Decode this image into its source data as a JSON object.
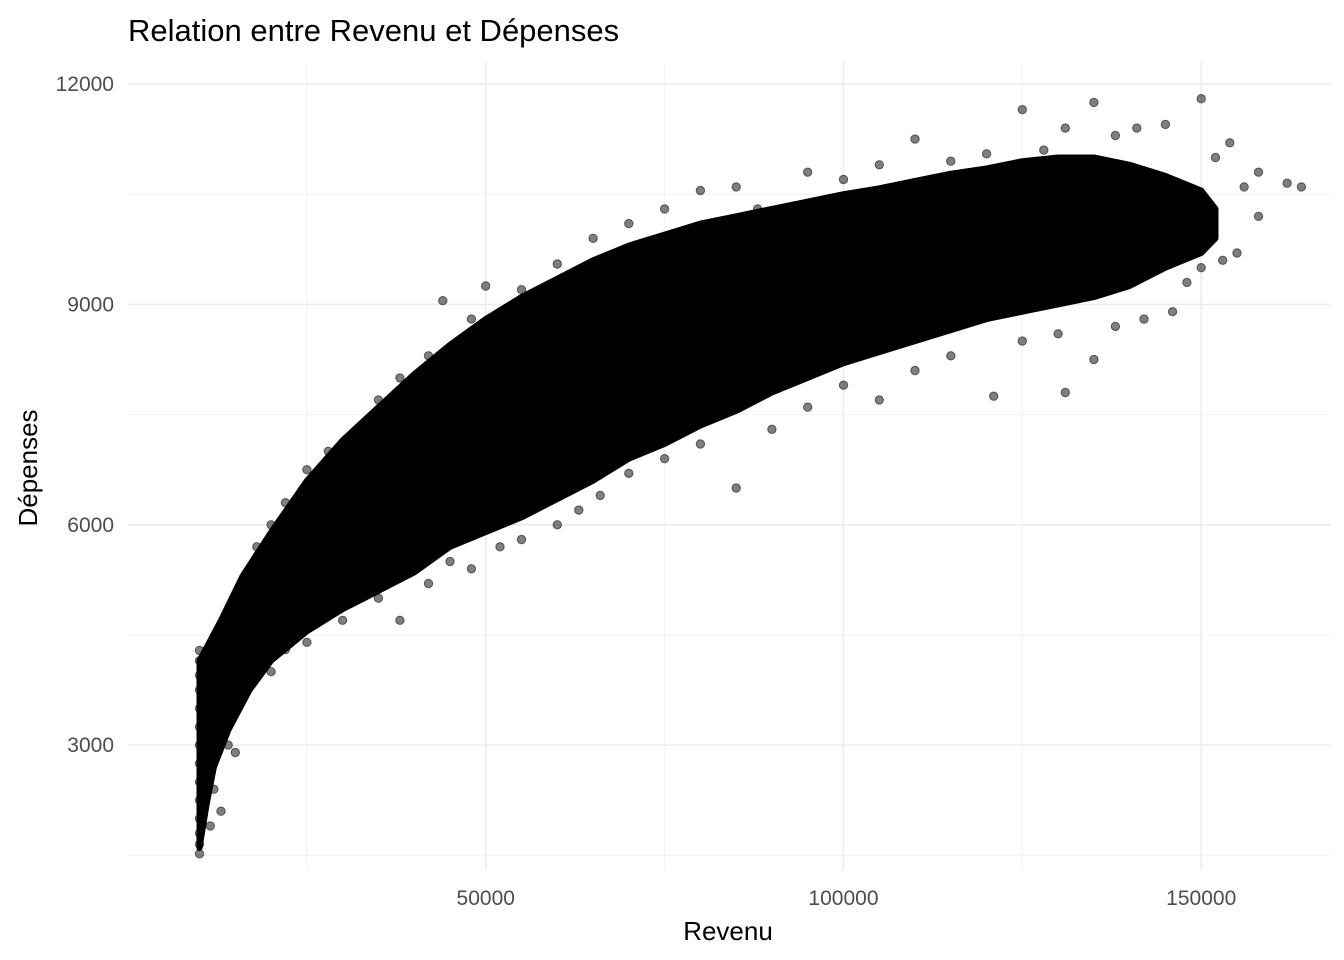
{
  "chart_data": {
    "type": "scatter",
    "title": "Relation entre Revenu et Dépenses",
    "xlabel": "Revenu",
    "ylabel": "Dépenses",
    "xlim": [
      0,
      168000
    ],
    "ylim": [
      1300,
      12300
    ],
    "x_ticks": [
      50000,
      100000,
      150000
    ],
    "y_ticks": [
      3000,
      6000,
      9000,
      12000
    ],
    "grid": true,
    "point_color": "#000000",
    "point_alpha": 0.5,
    "points": [
      [
        10000,
        1520
      ],
      [
        10000,
        1650
      ],
      [
        10000,
        1800
      ],
      [
        10000,
        2000
      ],
      [
        10000,
        2250
      ],
      [
        10000,
        2500
      ],
      [
        10000,
        2750
      ],
      [
        10000,
        3000
      ],
      [
        10000,
        3250
      ],
      [
        10000,
        3500
      ],
      [
        10000,
        3750
      ],
      [
        10000,
        3950
      ],
      [
        10000,
        4150
      ],
      [
        10000,
        4290
      ],
      [
        11500,
        1900
      ],
      [
        12000,
        2400
      ],
      [
        13000,
        2100
      ],
      [
        14000,
        3000
      ],
      [
        15000,
        2900
      ],
      [
        13000,
        4500
      ],
      [
        15000,
        4800
      ],
      [
        17000,
        5200
      ],
      [
        18000,
        5700
      ],
      [
        20000,
        6000
      ],
      [
        22000,
        6300
      ],
      [
        25000,
        6750
      ],
      [
        28000,
        7000
      ],
      [
        32000,
        7300
      ],
      [
        35000,
        7700
      ],
      [
        38000,
        8000
      ],
      [
        42000,
        8300
      ],
      [
        44000,
        9050
      ],
      [
        48000,
        8800
      ],
      [
        50000,
        9250
      ],
      [
        55000,
        9200
      ],
      [
        60000,
        9550
      ],
      [
        65000,
        9900
      ],
      [
        70000,
        10100
      ],
      [
        75000,
        10300
      ],
      [
        80000,
        10550
      ],
      [
        85000,
        10600
      ],
      [
        88000,
        10300
      ],
      [
        95000,
        10800
      ],
      [
        100000,
        10700
      ],
      [
        105000,
        10900
      ],
      [
        110000,
        11250
      ],
      [
        115000,
        10950
      ],
      [
        120000,
        11050
      ],
      [
        125000,
        11650
      ],
      [
        128000,
        11100
      ],
      [
        131000,
        11400
      ],
      [
        135000,
        11750
      ],
      [
        138000,
        11300
      ],
      [
        141000,
        11400
      ],
      [
        145000,
        11450
      ],
      [
        150000,
        11800
      ],
      [
        152000,
        11000
      ],
      [
        154000,
        11200
      ],
      [
        156000,
        10600
      ],
      [
        158000,
        10800
      ],
      [
        162000,
        10650
      ],
      [
        164000,
        10600
      ],
      [
        17000,
        3800
      ],
      [
        20000,
        4000
      ],
      [
        22000,
        4300
      ],
      [
        25000,
        4400
      ],
      [
        30000,
        4700
      ],
      [
        35000,
        5000
      ],
      [
        38000,
        4700
      ],
      [
        42000,
        5200
      ],
      [
        45000,
        5500
      ],
      [
        48000,
        5400
      ],
      [
        52000,
        5700
      ],
      [
        55000,
        5800
      ],
      [
        60000,
        6000
      ],
      [
        63000,
        6200
      ],
      [
        66000,
        6400
      ],
      [
        70000,
        6700
      ],
      [
        75000,
        6900
      ],
      [
        80000,
        7100
      ],
      [
        85000,
        6500
      ],
      [
        90000,
        7300
      ],
      [
        95000,
        7600
      ],
      [
        100000,
        7900
      ],
      [
        105000,
        7700
      ],
      [
        110000,
        8100
      ],
      [
        115000,
        8300
      ],
      [
        121000,
        7750
      ],
      [
        125000,
        8500
      ],
      [
        130000,
        8600
      ],
      [
        131000,
        7800
      ],
      [
        135000,
        8250
      ],
      [
        138000,
        8700
      ],
      [
        142000,
        8800
      ],
      [
        146000,
        8900
      ],
      [
        148000,
        9300
      ],
      [
        150000,
        9500
      ],
      [
        153000,
        9600
      ],
      [
        155000,
        9700
      ],
      [
        158000,
        10200
      ]
    ]
  }
}
